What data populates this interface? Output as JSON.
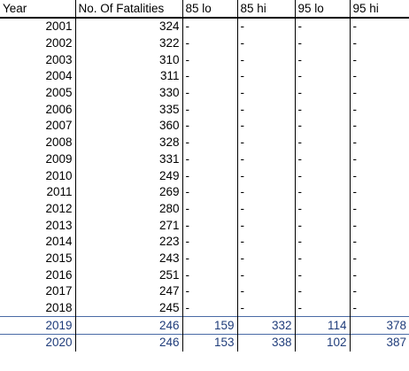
{
  "columns": [
    "Year",
    "No. Of Fatalities",
    "85 lo",
    "85 hi",
    "95 lo",
    "95 hi"
  ],
  "rows": [
    {
      "year": "2001",
      "fatalities": "324",
      "lo85": "-",
      "hi85": "-",
      "lo95": "-",
      "hi95": "-"
    },
    {
      "year": "2002",
      "fatalities": "322",
      "lo85": "-",
      "hi85": "-",
      "lo95": "-",
      "hi95": "-"
    },
    {
      "year": "2003",
      "fatalities": "310",
      "lo85": "-",
      "hi85": "-",
      "lo95": "-",
      "hi95": "-"
    },
    {
      "year": "2004",
      "fatalities": "311",
      "lo85": "-",
      "hi85": "-",
      "lo95": "-",
      "hi95": "-"
    },
    {
      "year": "2005",
      "fatalities": "330",
      "lo85": "-",
      "hi85": "-",
      "lo95": "-",
      "hi95": "-"
    },
    {
      "year": "2006",
      "fatalities": "335",
      "lo85": "-",
      "hi85": "-",
      "lo95": "-",
      "hi95": "-"
    },
    {
      "year": "2007",
      "fatalities": "360",
      "lo85": "-",
      "hi85": "-",
      "lo95": "-",
      "hi95": "-"
    },
    {
      "year": "2008",
      "fatalities": "328",
      "lo85": "-",
      "hi85": "-",
      "lo95": "-",
      "hi95": "-"
    },
    {
      "year": "2009",
      "fatalities": "331",
      "lo85": "-",
      "hi85": "-",
      "lo95": "-",
      "hi95": "-"
    },
    {
      "year": "2010",
      "fatalities": "249",
      "lo85": "-",
      "hi85": "-",
      "lo95": "-",
      "hi95": "-"
    },
    {
      "year": "2011",
      "fatalities": "269",
      "lo85": "-",
      "hi85": "-",
      "lo95": "-",
      "hi95": "-"
    },
    {
      "year": "2012",
      "fatalities": "280",
      "lo85": "-",
      "hi85": "-",
      "lo95": "-",
      "hi95": "-"
    },
    {
      "year": "2013",
      "fatalities": "271",
      "lo85": "-",
      "hi85": "-",
      "lo95": "-",
      "hi95": "-"
    },
    {
      "year": "2014",
      "fatalities": "223",
      "lo85": "-",
      "hi85": "-",
      "lo95": "-",
      "hi95": "-"
    },
    {
      "year": "2015",
      "fatalities": "243",
      "lo85": "-",
      "hi85": "-",
      "lo95": "-",
      "hi95": "-"
    },
    {
      "year": "2016",
      "fatalities": "251",
      "lo85": "-",
      "hi85": "-",
      "lo95": "-",
      "hi95": "-"
    },
    {
      "year": "2017",
      "fatalities": "247",
      "lo85": "-",
      "hi85": "-",
      "lo95": "-",
      "hi95": "-"
    },
    {
      "year": "2018",
      "fatalities": "245",
      "lo85": "-",
      "hi85": "-",
      "lo95": "-",
      "hi95": "-"
    }
  ],
  "forecast_rows": [
    {
      "year": "2019",
      "fatalities": "246",
      "lo85": "159",
      "hi85": "332",
      "lo95": "114",
      "hi95": "378"
    },
    {
      "year": "2020",
      "fatalities": "246",
      "lo85": "153",
      "hi85": "338",
      "lo95": "102",
      "hi95": "387"
    }
  ],
  "colors": {
    "forecast_text": "#1f3c7a",
    "forecast_border": "#4a6aa5",
    "grid": "#000000"
  }
}
